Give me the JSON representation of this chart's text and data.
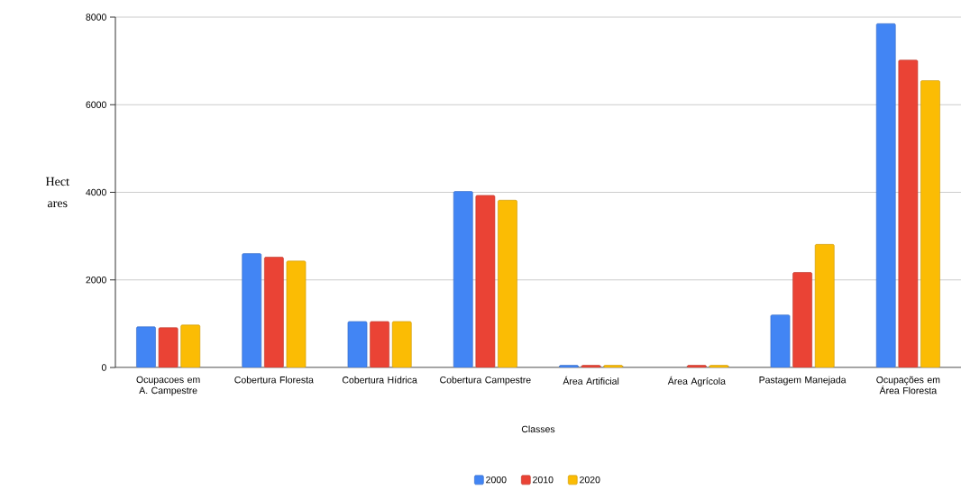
{
  "chart_data": {
    "type": "bar",
    "xlabel": "Classes",
    "ylabel": "Hect ares",
    "categories": [
      "Ocupacoes em A. Campestre",
      "Cobertura Floresta",
      "Cobertura Hídrica",
      "Cobertura Campestre",
      "Área Artificial",
      "Área Agrícola",
      "Pastagem Manejada",
      "Ocupações em Área Floresta"
    ],
    "series": [
      {
        "name": "2000",
        "color": "#4285f4",
        "values": [
          930,
          2600,
          1050,
          4020,
          50,
          null,
          1200,
          7850
        ]
      },
      {
        "name": "2010",
        "color": "#ea4335",
        "values": [
          910,
          2520,
          1050,
          3930,
          50,
          50,
          2170,
          7020
        ]
      },
      {
        "name": "2020",
        "color": "#fbbc04",
        "values": [
          970,
          2430,
          1050,
          3820,
          50,
          50,
          2810,
          6550
        ]
      }
    ],
    "ylim": [
      0,
      8000
    ],
    "yticks": [
      0,
      2000,
      4000,
      6000,
      8000
    ],
    "grid": "y",
    "legend": "bottom"
  }
}
